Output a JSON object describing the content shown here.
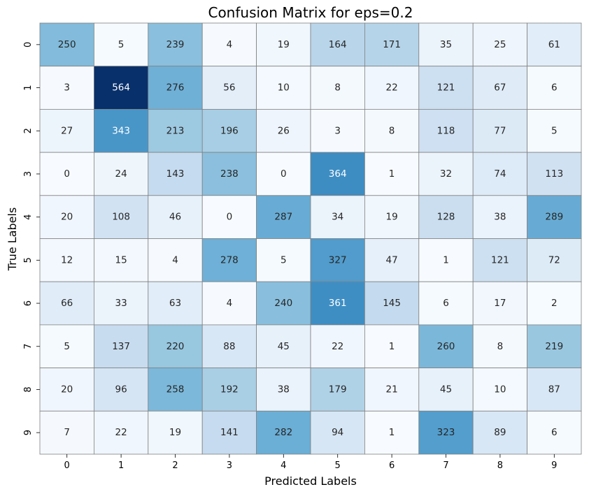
{
  "chart_data": {
    "type": "heatmap",
    "title": "Confusion Matrix for eps=0.2",
    "xlabel": "Predicted Labels",
    "ylabel": "True Labels",
    "x_ticks": [
      "0",
      "1",
      "2",
      "3",
      "4",
      "5",
      "6",
      "7",
      "8",
      "9"
    ],
    "y_ticks": [
      "0",
      "1",
      "2",
      "3",
      "4",
      "5",
      "6",
      "7",
      "8",
      "9"
    ],
    "colormap": "Blues",
    "annotated": true,
    "colorbar": false,
    "matrix": [
      [
        250,
        5,
        239,
        4,
        19,
        164,
        171,
        35,
        25,
        61
      ],
      [
        3,
        564,
        276,
        56,
        10,
        8,
        22,
        121,
        67,
        6
      ],
      [
        27,
        343,
        213,
        196,
        26,
        3,
        8,
        118,
        77,
        5
      ],
      [
        0,
        24,
        143,
        238,
        0,
        364,
        1,
        32,
        74,
        113
      ],
      [
        20,
        108,
        46,
        0,
        287,
        34,
        19,
        128,
        38,
        289
      ],
      [
        12,
        15,
        4,
        278,
        5,
        327,
        47,
        1,
        121,
        72
      ],
      [
        66,
        33,
        63,
        4,
        240,
        361,
        145,
        6,
        17,
        2
      ],
      [
        5,
        137,
        220,
        88,
        45,
        22,
        1,
        260,
        8,
        219
      ],
      [
        20,
        96,
        258,
        192,
        38,
        179,
        21,
        45,
        10,
        87
      ],
      [
        7,
        22,
        19,
        141,
        282,
        94,
        1,
        323,
        89,
        6
      ]
    ]
  }
}
